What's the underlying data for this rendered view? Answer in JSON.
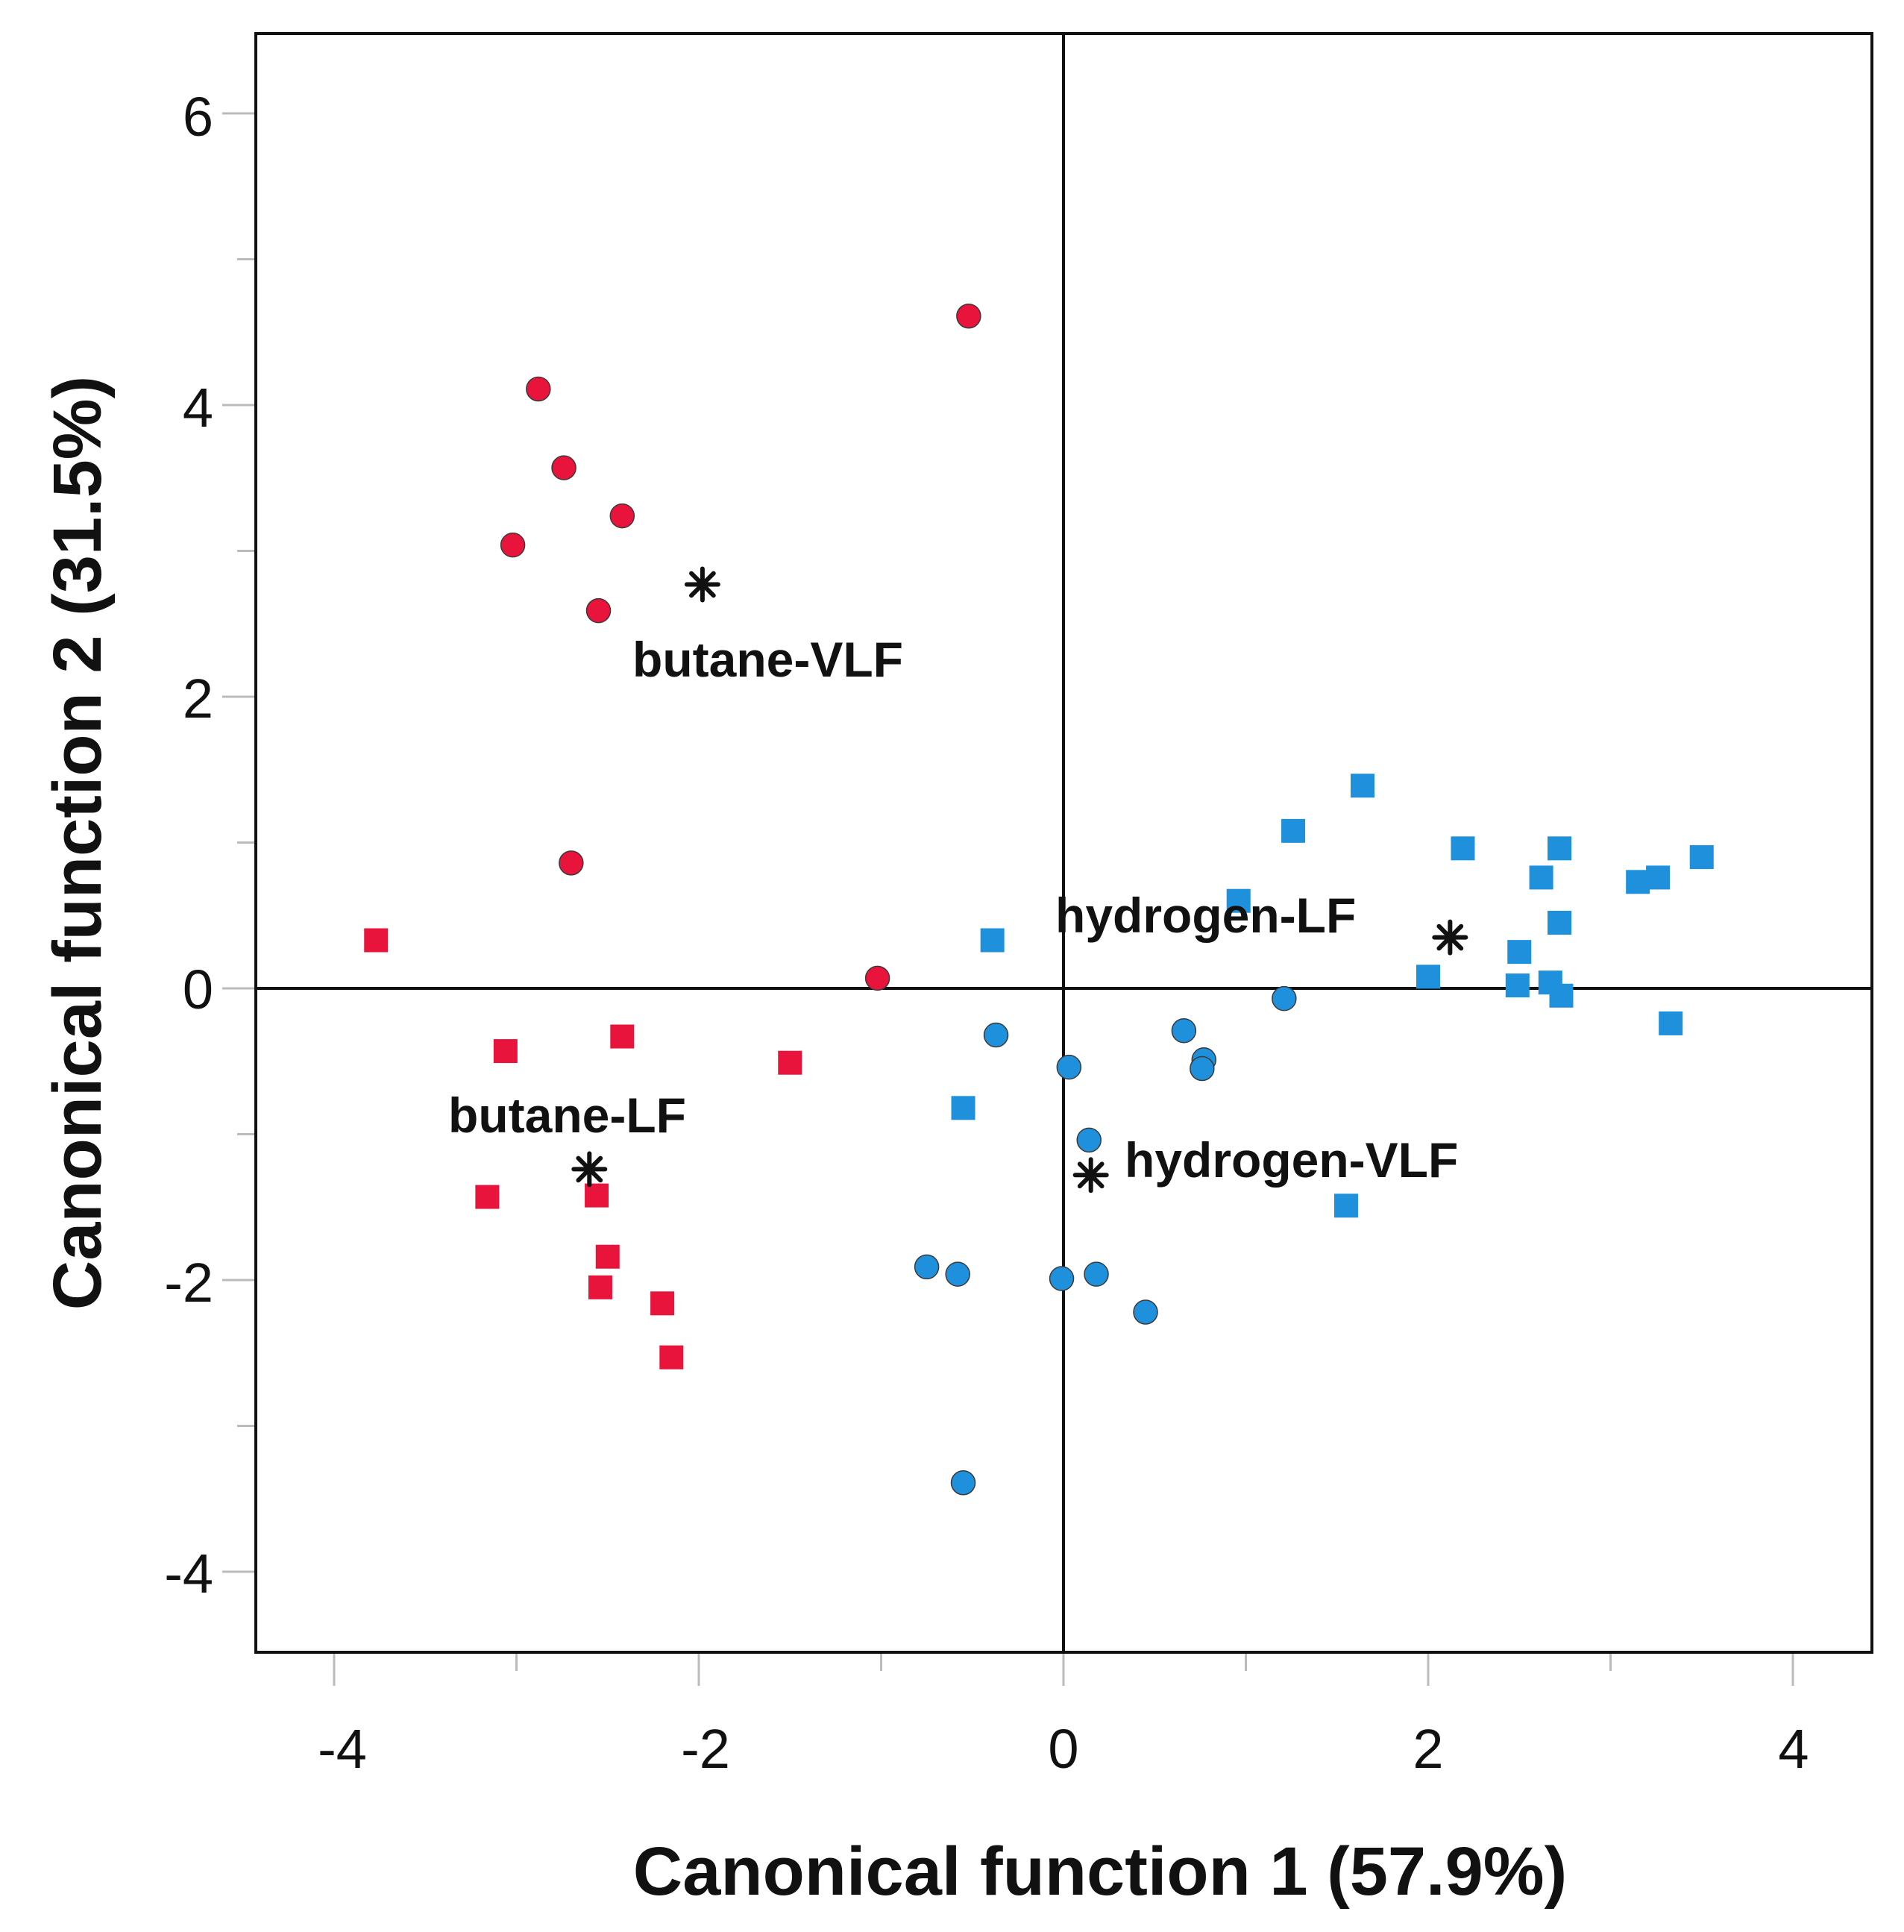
{
  "chart_data": {
    "type": "scatter",
    "xlabel": "Canonical function 1 (57.9%)",
    "ylabel": "Canonical function 2 (31.5%)",
    "xlim": [
      -4.4,
      4.4
    ],
    "ylim": [
      -4.5,
      6.55
    ],
    "x_ticks": [
      -4,
      -2,
      0,
      2,
      4
    ],
    "x_minor_ticks": [
      -3,
      -1,
      1,
      3
    ],
    "y_ticks": [
      -4,
      -2,
      0,
      2,
      4,
      6
    ],
    "y_minor_ticks": [
      -3,
      -1,
      1,
      3,
      5
    ],
    "reference_lines": {
      "x": 0,
      "y": 0
    },
    "colors": {
      "butane": "#e8143c",
      "hydrogen": "#1e90dc",
      "centroid": "#111111",
      "axis": "#111111"
    },
    "series": [
      {
        "name": "butane-VLF",
        "color": "#e8143c",
        "marker": "circle",
        "points": [
          [
            -0.52,
            4.61
          ],
          [
            -2.88,
            4.11
          ],
          [
            -2.74,
            3.57
          ],
          [
            -2.42,
            3.24
          ],
          [
            -3.02,
            3.04
          ],
          [
            -2.55,
            2.59
          ],
          [
            -2.7,
            0.86
          ],
          [
            -1.02,
            0.07
          ]
        ]
      },
      {
        "name": "butane-LF",
        "color": "#e8143c",
        "marker": "square",
        "points": [
          [
            -3.77,
            0.33
          ],
          [
            -3.06,
            -0.43
          ],
          [
            -2.42,
            -0.33
          ],
          [
            -1.5,
            -0.51
          ],
          [
            -3.16,
            -1.43
          ],
          [
            -2.56,
            -1.42
          ],
          [
            -2.5,
            -1.84
          ],
          [
            -2.54,
            -2.05
          ],
          [
            -2.2,
            -2.16
          ],
          [
            -2.15,
            -2.53
          ]
        ]
      },
      {
        "name": "hydrogen-LF",
        "color": "#1e90dc",
        "marker": "square",
        "points": [
          [
            1.64,
            1.39
          ],
          [
            1.26,
            1.08
          ],
          [
            2.19,
            0.96
          ],
          [
            2.72,
            0.96
          ],
          [
            2.62,
            0.76
          ],
          [
            3.5,
            0.9
          ],
          [
            3.15,
            0.73
          ],
          [
            3.26,
            0.76
          ],
          [
            0.96,
            0.6
          ],
          [
            -0.39,
            0.33
          ],
          [
            2.72,
            0.45
          ],
          [
            2.5,
            0.25
          ],
          [
            2.0,
            0.08
          ],
          [
            2.49,
            0.02
          ],
          [
            2.67,
            0.04
          ],
          [
            2.73,
            -0.05
          ],
          [
            3.33,
            -0.24
          ],
          [
            -0.55,
            -0.82
          ],
          [
            1.55,
            -1.49
          ]
        ]
      },
      {
        "name": "hydrogen-VLF",
        "color": "#1e90dc",
        "marker": "circle",
        "points": [
          [
            1.21,
            -0.07
          ],
          [
            0.66,
            -0.29
          ],
          [
            0.77,
            -0.49
          ],
          [
            0.76,
            -0.55
          ],
          [
            -0.37,
            -0.32
          ],
          [
            0.03,
            -0.54
          ],
          [
            0.14,
            -1.04
          ],
          [
            -0.75,
            -1.91
          ],
          [
            -0.58,
            -1.96
          ],
          [
            -0.01,
            -1.99
          ],
          [
            0.18,
            -1.96
          ],
          [
            0.45,
            -2.22
          ],
          [
            -0.55,
            -3.39
          ]
        ]
      }
    ],
    "centroids": [
      {
        "name": "butane-VLF",
        "label": "butane-VLF",
        "x": -1.98,
        "y": 2.77
      },
      {
        "name": "butane-LF",
        "label": "butane-LF",
        "x": -2.6,
        "y": -1.24
      },
      {
        "name": "hydrogen-LF",
        "label": "hydrogen-LF",
        "x": 2.12,
        "y": 0.35
      },
      {
        "name": "hydrogen-VLF",
        "label": "hydrogen-VLF",
        "x": 0.15,
        "y": -1.28
      }
    ]
  }
}
